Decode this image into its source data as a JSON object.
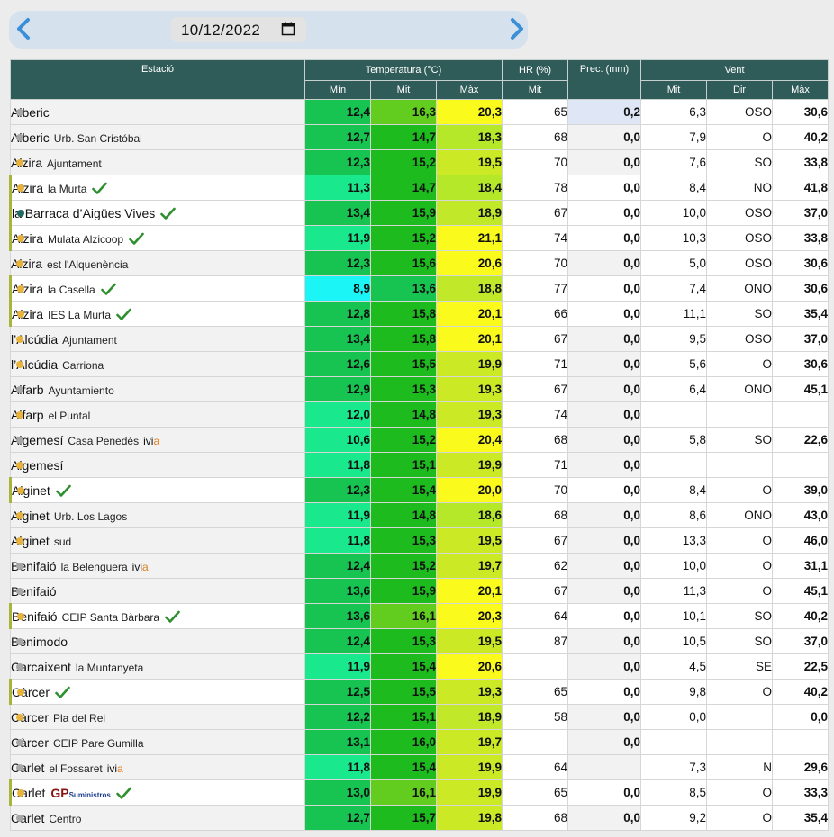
{
  "date": {
    "value": "10/12/2022"
  },
  "headers": {
    "station": "Estació",
    "temperature": "Temperatura (°C)",
    "humidity": "HR (%)",
    "precipitation": "Prec. (mm)",
    "wind": "Vent",
    "temp_min": "Mín",
    "temp_avg": "Mit",
    "temp_max": "Màx",
    "hr_avg": "Mit",
    "wind_avg": "Mit",
    "wind_dir": "Dir",
    "wind_max": "Màx"
  },
  "colors": {
    "header_bg": "#2f5b58",
    "dot_orange": "#e8b33c",
    "dot_grey": "#a6a6a6",
    "dot_teal": "#1f6b60",
    "check": "#2e8f2e",
    "arrow": "#3a8fd8",
    "prec_positive": "#dfe6f5"
  },
  "rows": [
    {
      "name": "Alberic",
      "sub": "",
      "dot": "grey",
      "hl": false,
      "check": false,
      "logo": "",
      "min": "12,4",
      "min_c": "#17c452",
      "avg": "16,3",
      "avg_c": "#62cc1f",
      "max": "20,3",
      "max_c": "#fafa1c",
      "hr": "65",
      "prec": "0,2",
      "prec_bg": "#dfe6f5",
      "wm": "6,3",
      "wd": "OSO",
      "wx": "30,6"
    },
    {
      "name": "Alberic",
      "sub": "Urb. San Cristóbal",
      "dot": "grey",
      "hl": false,
      "check": false,
      "logo": "",
      "min": "12,7",
      "min_c": "#17c452",
      "avg": "14,7",
      "avg_c": "#1dbb1d",
      "max": "18,3",
      "max_c": "#b6e82a",
      "hr": "68",
      "prec": "0,0",
      "prec_bg": "",
      "wm": "7,9",
      "wd": "O",
      "wx": "40,2"
    },
    {
      "name": "Alzira",
      "sub": "Ajuntament",
      "dot": "orange",
      "hl": false,
      "check": false,
      "logo": "",
      "min": "12,3",
      "min_c": "#17c452",
      "avg": "15,2",
      "avg_c": "#1dbb1d",
      "max": "19,5",
      "max_c": "#cce925",
      "hr": "70",
      "prec": "0,0",
      "prec_bg": "",
      "wm": "7,6",
      "wd": "SO",
      "wx": "33,8"
    },
    {
      "name": "Alzira",
      "sub": "la Murta",
      "dot": "orange",
      "hl": true,
      "check": true,
      "logo": "",
      "min": "11,3",
      "min_c": "#19e88c",
      "avg": "14,7",
      "avg_c": "#1dbb1d",
      "max": "18,4",
      "max_c": "#b6e82a",
      "hr": "78",
      "prec": "0,0",
      "prec_bg": "",
      "wm": "8,4",
      "wd": "NO",
      "wx": "41,8"
    },
    {
      "name": "la Barraca d’Aigües Vives",
      "sub": "",
      "dot": "teal",
      "hl": true,
      "check": true,
      "logo": "",
      "min": "13,4",
      "min_c": "#17c452",
      "avg": "15,9",
      "avg_c": "#1dbb1d",
      "max": "18,9",
      "max_c": "#c2e82a",
      "hr": "67",
      "prec": "0,0",
      "prec_bg": "",
      "wm": "10,0",
      "wd": "OSO",
      "wx": "37,0"
    },
    {
      "name": "Alzira",
      "sub": "Mulata Alzicoop",
      "dot": "orange",
      "hl": true,
      "check": true,
      "logo": "",
      "min": "11,9",
      "min_c": "#19e88c",
      "avg": "15,2",
      "avg_c": "#1dbb1d",
      "max": "21,1",
      "max_c": "#fafa1c",
      "hr": "74",
      "prec": "0,0",
      "prec_bg": "",
      "wm": "10,3",
      "wd": "OSO",
      "wx": "33,8"
    },
    {
      "name": "Alzira",
      "sub": "est l'Alquenència",
      "dot": "orange",
      "hl": false,
      "check": false,
      "logo": "",
      "min": "12,3",
      "min_c": "#17c452",
      "avg": "15,6",
      "avg_c": "#1dbb1d",
      "max": "20,6",
      "max_c": "#fafa1c",
      "hr": "70",
      "prec": "0,0",
      "prec_bg": "",
      "wm": "5,0",
      "wd": "OSO",
      "wx": "30,6"
    },
    {
      "name": "Alzira",
      "sub": "la Casella",
      "dot": "orange",
      "hl": true,
      "check": true,
      "logo": "",
      "min": "8,9",
      "min_c": "#1cf5f5",
      "avg": "13,6",
      "avg_c": "#17c452",
      "max": "18,8",
      "max_c": "#c2e82a",
      "hr": "77",
      "prec": "0,0",
      "prec_bg": "",
      "wm": "7,4",
      "wd": "ONO",
      "wx": "30,6"
    },
    {
      "name": "Alzira",
      "sub": "IES La Murta",
      "dot": "orange",
      "hl": true,
      "check": true,
      "logo": "",
      "min": "12,8",
      "min_c": "#17c452",
      "avg": "15,8",
      "avg_c": "#1dbb1d",
      "max": "20,1",
      "max_c": "#fafa1c",
      "hr": "66",
      "prec": "0,0",
      "prec_bg": "",
      "wm": "11,1",
      "wd": "SO",
      "wx": "35,4"
    },
    {
      "name": "l’Alcúdia",
      "sub": "Ajuntament",
      "dot": "orange",
      "hl": false,
      "check": false,
      "logo": "",
      "min": "13,4",
      "min_c": "#17c452",
      "avg": "15,8",
      "avg_c": "#1dbb1d",
      "max": "20,1",
      "max_c": "#fafa1c",
      "hr": "67",
      "prec": "0,0",
      "prec_bg": "",
      "wm": "9,5",
      "wd": "OSO",
      "wx": "37,0"
    },
    {
      "name": "l’Alcúdia",
      "sub": "Carriona",
      "dot": "orange",
      "hl": false,
      "check": false,
      "logo": "",
      "min": "12,6",
      "min_c": "#17c452",
      "avg": "15,5",
      "avg_c": "#1dbb1d",
      "max": "19,9",
      "max_c": "#cce925",
      "hr": "71",
      "prec": "0,0",
      "prec_bg": "",
      "wm": "5,6",
      "wd": "O",
      "wx": "30,6"
    },
    {
      "name": "Alfarb",
      "sub": "Ayuntamiento",
      "dot": "grey",
      "hl": false,
      "check": false,
      "logo": "",
      "min": "12,9",
      "min_c": "#17c452",
      "avg": "15,3",
      "avg_c": "#1dbb1d",
      "max": "19,3",
      "max_c": "#cce925",
      "hr": "67",
      "prec": "0,0",
      "prec_bg": "",
      "wm": "6,4",
      "wd": "ONO",
      "wx": "45,1"
    },
    {
      "name": "Alfarp",
      "sub": "el Puntal",
      "dot": "orange",
      "hl": false,
      "check": false,
      "logo": "",
      "min": "12,0",
      "min_c": "#19e88c",
      "avg": "14,8",
      "avg_c": "#1dbb1d",
      "max": "19,3",
      "max_c": "#cce925",
      "hr": "74",
      "prec": "0,0",
      "prec_bg": "",
      "wm": "",
      "wd": "",
      "wx": ""
    },
    {
      "name": "Algemesí",
      "sub": "Casa Penedés",
      "dot": "grey",
      "hl": false,
      "check": false,
      "logo": "ivia",
      "min": "10,6",
      "min_c": "#19e88c",
      "avg": "15,2",
      "avg_c": "#1dbb1d",
      "max": "20,4",
      "max_c": "#fafa1c",
      "hr": "68",
      "prec": "0,0",
      "prec_bg": "",
      "wm": "5,8",
      "wd": "SO",
      "wx": "22,6"
    },
    {
      "name": "Algemesí",
      "sub": "",
      "dot": "orange",
      "hl": false,
      "check": false,
      "logo": "",
      "min": "11,8",
      "min_c": "#19e88c",
      "avg": "15,1",
      "avg_c": "#1dbb1d",
      "max": "19,9",
      "max_c": "#cce925",
      "hr": "71",
      "prec": "0,0",
      "prec_bg": "",
      "wm": "",
      "wd": "",
      "wx": ""
    },
    {
      "name": "Alginet",
      "sub": "",
      "dot": "orange",
      "hl": true,
      "check": true,
      "logo": "",
      "min": "12,3",
      "min_c": "#17c452",
      "avg": "15,4",
      "avg_c": "#1dbb1d",
      "max": "20,0",
      "max_c": "#fafa1c",
      "hr": "70",
      "prec": "0,0",
      "prec_bg": "",
      "wm": "8,4",
      "wd": "O",
      "wx": "39,0"
    },
    {
      "name": "Alginet",
      "sub": "Urb. Los Lagos",
      "dot": "orange",
      "hl": false,
      "check": false,
      "logo": "",
      "min": "11,9",
      "min_c": "#19e88c",
      "avg": "14,8",
      "avg_c": "#1dbb1d",
      "max": "18,6",
      "max_c": "#b6e82a",
      "hr": "68",
      "prec": "0,0",
      "prec_bg": "",
      "wm": "8,6",
      "wd": "ONO",
      "wx": "43,0"
    },
    {
      "name": "Alginet",
      "sub": "sud",
      "dot": "orange",
      "hl": false,
      "check": false,
      "logo": "",
      "min": "11,8",
      "min_c": "#19e88c",
      "avg": "15,3",
      "avg_c": "#1dbb1d",
      "max": "19,5",
      "max_c": "#cce925",
      "hr": "67",
      "prec": "0,0",
      "prec_bg": "",
      "wm": "13,3",
      "wd": "O",
      "wx": "46,0"
    },
    {
      "name": "Benifaió",
      "sub": "la Belenguera",
      "dot": "grey",
      "hl": false,
      "check": false,
      "logo": "ivia",
      "min": "12,4",
      "min_c": "#17c452",
      "avg": "15,2",
      "avg_c": "#1dbb1d",
      "max": "19,7",
      "max_c": "#cce925",
      "hr": "62",
      "prec": "0,0",
      "prec_bg": "",
      "wm": "10,0",
      "wd": "O",
      "wx": "31,1"
    },
    {
      "name": "Benifaió",
      "sub": "",
      "dot": "grey",
      "hl": false,
      "check": false,
      "logo": "",
      "min": "13,6",
      "min_c": "#17c452",
      "avg": "15,9",
      "avg_c": "#1dbb1d",
      "max": "20,1",
      "max_c": "#fafa1c",
      "hr": "67",
      "prec": "0,0",
      "prec_bg": "",
      "wm": "11,3",
      "wd": "O",
      "wx": "45,1"
    },
    {
      "name": "Benifaió",
      "sub": "CEIP Santa Bàrbara",
      "dot": "orange",
      "hl": true,
      "check": true,
      "logo": "",
      "min": "13,6",
      "min_c": "#17c452",
      "avg": "16,1",
      "avg_c": "#62cc1f",
      "max": "20,3",
      "max_c": "#fafa1c",
      "hr": "64",
      "prec": "0,0",
      "prec_bg": "",
      "wm": "10,1",
      "wd": "SO",
      "wx": "40,2"
    },
    {
      "name": "Benimodo",
      "sub": "",
      "dot": "grey",
      "hl": false,
      "check": false,
      "logo": "",
      "min": "12,4",
      "min_c": "#17c452",
      "avg": "15,3",
      "avg_c": "#1dbb1d",
      "max": "19,5",
      "max_c": "#cce925",
      "hr": "87",
      "prec": "0,0",
      "prec_bg": "",
      "wm": "10,5",
      "wd": "SO",
      "wx": "37,0"
    },
    {
      "name": "Carcaixent",
      "sub": "la Muntanyeta",
      "dot": "grey",
      "hl": false,
      "check": false,
      "logo": "",
      "min": "11,9",
      "min_c": "#19e88c",
      "avg": "15,4",
      "avg_c": "#1dbb1d",
      "max": "20,6",
      "max_c": "#fafa1c",
      "hr": "",
      "prec": "0,0",
      "prec_bg": "",
      "wm": "4,5",
      "wd": "SE",
      "wx": "22,5"
    },
    {
      "name": "Càrcer",
      "sub": "",
      "dot": "orange",
      "hl": true,
      "check": true,
      "logo": "",
      "min": "12,5",
      "min_c": "#17c452",
      "avg": "15,5",
      "avg_c": "#1dbb1d",
      "max": "19,3",
      "max_c": "#cce925",
      "hr": "65",
      "prec": "0,0",
      "prec_bg": "",
      "wm": "9,8",
      "wd": "O",
      "wx": "40,2"
    },
    {
      "name": "Càrcer",
      "sub": "Pla del Rei",
      "dot": "orange",
      "hl": false,
      "check": false,
      "logo": "",
      "min": "12,2",
      "min_c": "#17c452",
      "avg": "15,1",
      "avg_c": "#1dbb1d",
      "max": "18,9",
      "max_c": "#c2e82a",
      "hr": "58",
      "prec": "0,0",
      "prec_bg": "",
      "wm": "0,0",
      "wd": "",
      "wx": "0,0"
    },
    {
      "name": "Càrcer",
      "sub": "CEIP Pare Gumilla",
      "dot": "grey",
      "hl": false,
      "check": false,
      "logo": "",
      "min": "13,1",
      "min_c": "#17c452",
      "avg": "16,0",
      "avg_c": "#1dbb1d",
      "max": "19,7",
      "max_c": "#cce925",
      "hr": "",
      "prec": "0,0",
      "prec_bg": "",
      "wm": "",
      "wd": "",
      "wx": ""
    },
    {
      "name": "Carlet",
      "sub": "el Fossaret",
      "dot": "grey",
      "hl": false,
      "check": false,
      "logo": "ivia",
      "min": "11,8",
      "min_c": "#19e88c",
      "avg": "15,4",
      "avg_c": "#1dbb1d",
      "max": "19,9",
      "max_c": "#cce925",
      "hr": "64",
      "prec": "",
      "prec_bg": "",
      "wm": "7,3",
      "wd": "N",
      "wx": "29,6"
    },
    {
      "name": "Carlet",
      "sub": "",
      "dot": "orange",
      "hl": true,
      "check": true,
      "logo": "gp",
      "min": "13,0",
      "min_c": "#17c452",
      "avg": "16,1",
      "avg_c": "#62cc1f",
      "max": "19,9",
      "max_c": "#cce925",
      "hr": "65",
      "prec": "0,0",
      "prec_bg": "",
      "wm": "8,5",
      "wd": "O",
      "wx": "33,3"
    },
    {
      "name": "Carlet",
      "sub": "Centro",
      "dot": "grey",
      "hl": false,
      "check": false,
      "logo": "",
      "min": "12,7",
      "min_c": "#17c452",
      "avg": "15,7",
      "avg_c": "#1dbb1d",
      "max": "19,8",
      "max_c": "#cce925",
      "hr": "68",
      "prec": "0,0",
      "prec_bg": "",
      "wm": "9,2",
      "wd": "O",
      "wx": "35,4"
    }
  ],
  "logos": {
    "ivia_i": "ivi",
    "ivia_a": "a",
    "gp_main": "GP",
    "gp_small": "Suministros"
  }
}
